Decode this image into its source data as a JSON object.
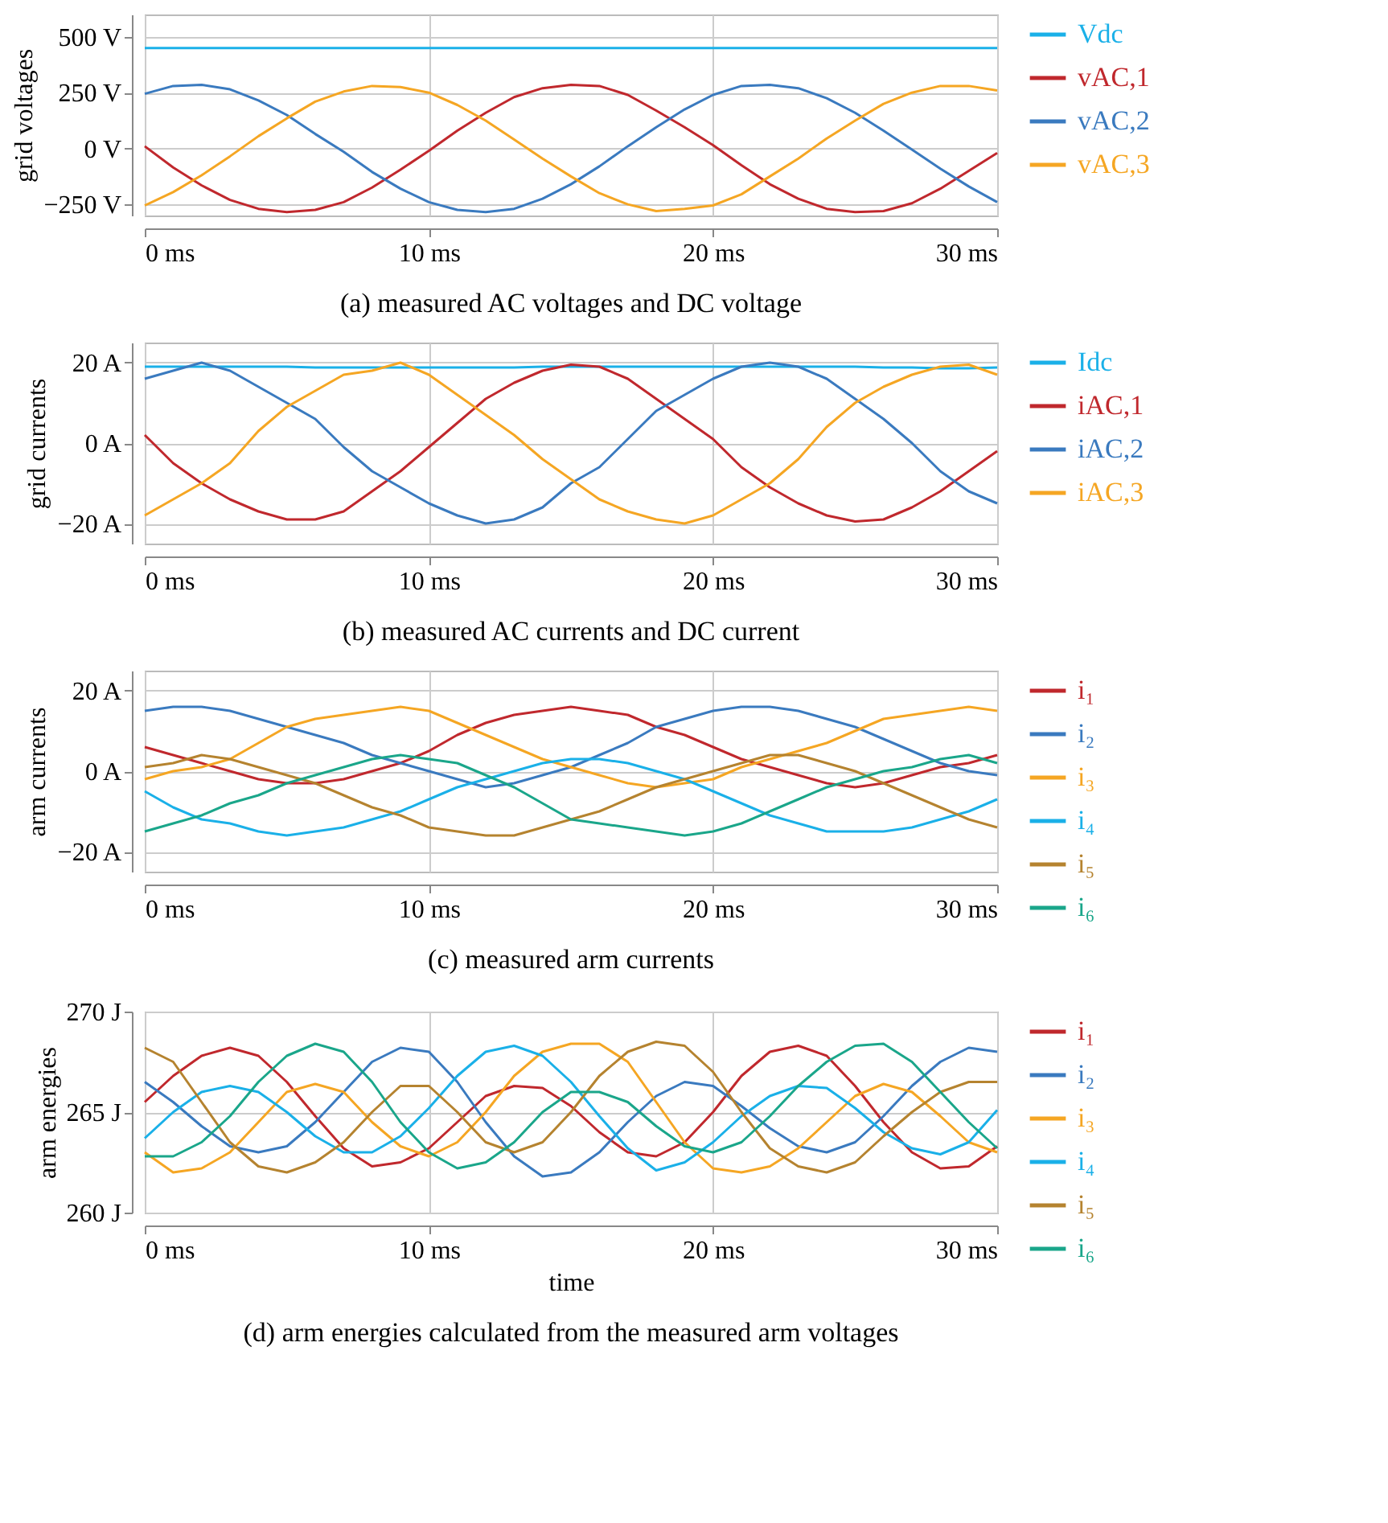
{
  "chart_data": [
    {
      "type": "line",
      "title": "(a) measured AC voltages and DC voltage",
      "ylabel": "grid voltages",
      "legend": "right",
      "grid": true,
      "x": [
        0,
        1,
        2,
        3,
        4,
        5,
        6,
        7,
        8,
        9,
        10,
        11,
        12,
        13,
        14,
        15,
        16,
        17,
        18,
        19,
        20,
        21,
        22,
        23,
        24,
        25,
        26,
        27,
        28,
        29,
        30
      ],
      "xlim": [
        0,
        30
      ],
      "xticks": [
        {
          "value": 0,
          "label": "0 ms"
        },
        {
          "value": 10,
          "label": "10 ms"
        },
        {
          "value": 20,
          "label": "20 ms"
        },
        {
          "value": 30,
          "label": "30 ms"
        }
      ],
      "ylim": [
        -300,
        600
      ],
      "yticks": [
        {
          "value": -250,
          "label": "−250 V"
        },
        {
          "value": 0,
          "label": "0 V"
        },
        {
          "value": 250,
          "label": "250 V"
        },
        {
          "value": 500,
          "label": "500 V"
        }
      ],
      "series": [
        {
          "name": "Vdc",
          "color": "#1ab0e8",
          "values": [
            450,
            450,
            450,
            450,
            450,
            450,
            450,
            450,
            450,
            450,
            450,
            450,
            450,
            450,
            450,
            450,
            450,
            450,
            450,
            450,
            450,
            450,
            450,
            450,
            450,
            450,
            450,
            450,
            450,
            450,
            450
          ]
        },
        {
          "name": "vAC,1",
          "color": "#c0282d",
          "values": [
            10,
            -85,
            -165,
            -230,
            -270,
            -285,
            -275,
            -240,
            -175,
            -95,
            -10,
            80,
            160,
            230,
            270,
            285,
            280,
            240,
            170,
            95,
            15,
            -75,
            -160,
            -225,
            -270,
            -285,
            -280,
            -245,
            -180,
            -100,
            -20
          ]
        },
        {
          "name": "vAC,2",
          "color": "#3a7abf",
          "values": [
            245,
            280,
            285,
            265,
            215,
            150,
            65,
            -15,
            -105,
            -180,
            -240,
            -275,
            -285,
            -270,
            -225,
            -160,
            -80,
            10,
            95,
            175,
            240,
            280,
            285,
            270,
            225,
            160,
            80,
            -5,
            -90,
            -170,
            -240
          ]
        },
        {
          "name": "vAC,3",
          "color": "#f5a623",
          "values": [
            -255,
            -195,
            -120,
            -35,
            55,
            135,
            210,
            255,
            280,
            275,
            250,
            195,
            125,
            40,
            -45,
            -125,
            -200,
            -250,
            -280,
            -270,
            -255,
            -205,
            -125,
            -45,
            45,
            125,
            200,
            250,
            280,
            280,
            260
          ]
        }
      ]
    },
    {
      "type": "line",
      "title": "(b) measured AC currents and DC current",
      "ylabel": "grid currents",
      "legend": "right",
      "grid": true,
      "x": [
        0,
        1,
        2,
        3,
        4,
        5,
        6,
        7,
        8,
        9,
        10,
        11,
        12,
        13,
        14,
        15,
        16,
        17,
        18,
        19,
        20,
        21,
        22,
        23,
        24,
        25,
        26,
        27,
        28,
        29,
        30
      ],
      "xlim": [
        0,
        30
      ],
      "xticks": [
        {
          "value": 0,
          "label": "0 ms"
        },
        {
          "value": 10,
          "label": "10 ms"
        },
        {
          "value": 20,
          "label": "20 ms"
        },
        {
          "value": 30,
          "label": "30 ms"
        }
      ],
      "ylim": [
        -25,
        25
      ],
      "yticks": [
        {
          "value": -20,
          "label": "−20 A"
        },
        {
          "value": 0,
          "label": "0 A"
        },
        {
          "value": 20,
          "label": "20 A"
        }
      ],
      "series": [
        {
          "name": "Idc",
          "color": "#1ab0e8",
          "values": [
            19,
            19,
            19,
            19,
            19,
            19,
            18.8,
            18.8,
            18.8,
            18.8,
            18.8,
            18.8,
            18.8,
            18.8,
            19,
            19,
            19,
            19,
            19,
            19,
            19,
            19,
            19,
            19,
            19,
            19,
            18.8,
            18.8,
            18.6,
            18.6,
            18.8
          ]
        },
        {
          "name": "iAC,1",
          "color": "#c0282d",
          "values": [
            2,
            -5,
            -10,
            -14,
            -17,
            -19,
            -19,
            -17,
            -12,
            -7,
            -1,
            5,
            11,
            15,
            18,
            19.5,
            19,
            16,
            11,
            6,
            1,
            -6,
            -11,
            -15,
            -18,
            -19.5,
            -19,
            -16,
            -12,
            -7,
            -2
          ]
        },
        {
          "name": "iAC,2",
          "color": "#3a7abf",
          "values": [
            16,
            18,
            20,
            18,
            14,
            10,
            6,
            -1,
            -7,
            -11,
            -15,
            -18,
            -20,
            -19,
            -16,
            -10,
            -6,
            1,
            8,
            12,
            16,
            19,
            20,
            19,
            16,
            11,
            6,
            0,
            -7,
            -12,
            -15
          ]
        },
        {
          "name": "iAC,3",
          "color": "#f5a623",
          "values": [
            -18,
            -14,
            -10,
            -5,
            3,
            9,
            13,
            17,
            18,
            20,
            17,
            12,
            7,
            2,
            -4,
            -9,
            -14,
            -17,
            -19,
            -20,
            -18,
            -14,
            -10,
            -4,
            4,
            10,
            14,
            17,
            19,
            19.5,
            17
          ]
        }
      ]
    },
    {
      "type": "line",
      "title": "(c) measured arm currents",
      "ylabel": "arm currents",
      "legend": "right",
      "grid": true,
      "x": [
        0,
        1,
        2,
        3,
        4,
        5,
        6,
        7,
        8,
        9,
        10,
        11,
        12,
        13,
        14,
        15,
        16,
        17,
        18,
        19,
        20,
        21,
        22,
        23,
        24,
        25,
        26,
        27,
        28,
        29,
        30
      ],
      "xlim": [
        0,
        30
      ],
      "xticks": [
        {
          "value": 0,
          "label": "0 ms"
        },
        {
          "value": 10,
          "label": "10 ms"
        },
        {
          "value": 20,
          "label": "20 ms"
        },
        {
          "value": 30,
          "label": "30 ms"
        }
      ],
      "ylim": [
        -25,
        25
      ],
      "yticks": [
        {
          "value": -20,
          "label": "−20 A"
        },
        {
          "value": 0,
          "label": "0 A"
        },
        {
          "value": 20,
          "label": "20 A"
        }
      ],
      "series": [
        {
          "name": "i₁",
          "color": "#c0282d",
          "values": [
            6,
            4,
            2,
            0,
            -2,
            -3,
            -3,
            -2,
            0,
            2,
            5,
            9,
            12,
            14,
            15,
            16,
            15,
            14,
            11,
            9,
            6,
            3,
            1,
            -1,
            -3,
            -4,
            -3,
            -1,
            1,
            2,
            4
          ]
        },
        {
          "name": "i₂",
          "color": "#3a7abf",
          "values": [
            15,
            16,
            16,
            15,
            13,
            11,
            9,
            7,
            4,
            2,
            0,
            -2,
            -4,
            -3,
            -1,
            1,
            4,
            7,
            11,
            13,
            15,
            16,
            16,
            15,
            13,
            11,
            8,
            5,
            2,
            0,
            -1
          ]
        },
        {
          "name": "i₃",
          "color": "#f5a623",
          "values": [
            -2,
            0,
            1,
            3,
            7,
            11,
            13,
            14,
            15,
            16,
            15,
            12,
            9,
            6,
            3,
            1,
            -1,
            -3,
            -4,
            -3,
            -2,
            1,
            3,
            5,
            7,
            10,
            13,
            14,
            15,
            16,
            15
          ]
        },
        {
          "name": "i₄",
          "color": "#1ab0e8",
          "values": [
            -5,
            -9,
            -12,
            -13,
            -15,
            -16,
            -15,
            -14,
            -12,
            -10,
            -7,
            -4,
            -2,
            0,
            2,
            3,
            3,
            2,
            0,
            -2,
            -5,
            -8,
            -11,
            -13,
            -15,
            -15,
            -15,
            -14,
            -12,
            -10,
            -7
          ]
        },
        {
          "name": "i₅",
          "color": "#b5832f",
          "values": [
            1,
            2,
            4,
            3,
            1,
            -1,
            -3,
            -6,
            -9,
            -11,
            -14,
            -15,
            -16,
            -16,
            -14,
            -12,
            -10,
            -7,
            -4,
            -2,
            0,
            2,
            4,
            4,
            2,
            0,
            -3,
            -6,
            -9,
            -12,
            -14
          ]
        },
        {
          "name": "i₆",
          "color": "#1aa68a",
          "values": [
            -15,
            -13,
            -11,
            -8,
            -6,
            -3,
            -1,
            1,
            3,
            4,
            3,
            2,
            -1,
            -4,
            -8,
            -12,
            -13,
            -14,
            -15,
            -16,
            -15,
            -13,
            -10,
            -7,
            -4,
            -2,
            0,
            1,
            3,
            4,
            2
          ]
        }
      ]
    },
    {
      "type": "line",
      "title": "(d) arm energies calculated from the measured arm voltages",
      "xlabel": "time",
      "ylabel": "arm energies",
      "legend": "right",
      "grid": true,
      "x": [
        0,
        1,
        2,
        3,
        4,
        5,
        6,
        7,
        8,
        9,
        10,
        11,
        12,
        13,
        14,
        15,
        16,
        17,
        18,
        19,
        20,
        21,
        22,
        23,
        24,
        25,
        26,
        27,
        28,
        29,
        30
      ],
      "xlim": [
        0,
        30
      ],
      "xticks": [
        {
          "value": 0,
          "label": "0 ms"
        },
        {
          "value": 10,
          "label": "10 ms"
        },
        {
          "value": 20,
          "label": "20 ms"
        },
        {
          "value": 30,
          "label": "30 ms"
        }
      ],
      "ylim": [
        260,
        270
      ],
      "yticks": [
        {
          "value": 260,
          "label": "260 J"
        },
        {
          "value": 265,
          "label": "265 J"
        },
        {
          "value": 270,
          "label": "270 J"
        }
      ],
      "series": [
        {
          "name": "i₁",
          "color": "#c0282d",
          "values": [
            265.5,
            266.8,
            267.8,
            268.2,
            267.8,
            266.5,
            264.8,
            263.2,
            262.3,
            262.5,
            263.2,
            264.5,
            265.8,
            266.3,
            266.2,
            265.3,
            264.0,
            263.0,
            262.8,
            263.5,
            265.0,
            266.8,
            268.0,
            268.3,
            267.8,
            266.3,
            264.5,
            263.0,
            262.2,
            262.3,
            263.3
          ]
        },
        {
          "name": "i₂",
          "color": "#3a7abf",
          "values": [
            266.5,
            265.5,
            264.3,
            263.3,
            263.0,
            263.3,
            264.5,
            266.0,
            267.5,
            268.2,
            268.0,
            266.5,
            264.5,
            262.8,
            261.8,
            262.0,
            263.0,
            264.5,
            265.8,
            266.5,
            266.3,
            265.3,
            264.2,
            263.3,
            263.0,
            263.5,
            264.8,
            266.3,
            267.5,
            268.2,
            268.0
          ]
        },
        {
          "name": "i₃",
          "color": "#f5a623",
          "values": [
            263.0,
            262.0,
            262.2,
            263.0,
            264.5,
            266.0,
            266.4,
            266.0,
            264.5,
            263.3,
            262.8,
            263.5,
            265.0,
            266.8,
            268.0,
            268.4,
            268.4,
            267.5,
            265.5,
            263.5,
            262.2,
            262.0,
            262.3,
            263.2,
            264.5,
            265.8,
            266.4,
            266.0,
            264.8,
            263.5,
            263.0
          ]
        },
        {
          "name": "i₄",
          "color": "#1ab0e8",
          "values": [
            263.7,
            265.0,
            266.0,
            266.3,
            266.0,
            265.0,
            263.8,
            263.0,
            263.0,
            263.8,
            265.2,
            266.8,
            268.0,
            268.3,
            267.8,
            266.5,
            264.8,
            263.2,
            262.1,
            262.5,
            263.5,
            264.8,
            265.8,
            266.3,
            266.2,
            265.2,
            264.0,
            263.2,
            262.9,
            263.5,
            265.1
          ]
        },
        {
          "name": "i₅",
          "color": "#b5832f",
          "values": [
            268.2,
            267.5,
            265.5,
            263.5,
            262.3,
            262.0,
            262.5,
            263.5,
            265.0,
            266.3,
            266.3,
            265.0,
            263.5,
            263.0,
            263.5,
            265.0,
            266.8,
            268.0,
            268.5,
            268.3,
            267.0,
            265.0,
            263.2,
            262.3,
            262.0,
            262.5,
            263.8,
            265.0,
            266.0,
            266.5,
            266.5
          ]
        },
        {
          "name": "i₆",
          "color": "#1aa68a",
          "values": [
            262.8,
            262.8,
            263.5,
            264.8,
            266.5,
            267.8,
            268.4,
            268.0,
            266.5,
            264.5,
            263.0,
            262.2,
            262.5,
            263.5,
            265.0,
            266.0,
            266.0,
            265.5,
            264.3,
            263.3,
            263.0,
            263.5,
            264.8,
            266.3,
            267.5,
            268.3,
            268.4,
            267.5,
            266.0,
            264.5,
            263.2
          ]
        }
      ]
    }
  ]
}
